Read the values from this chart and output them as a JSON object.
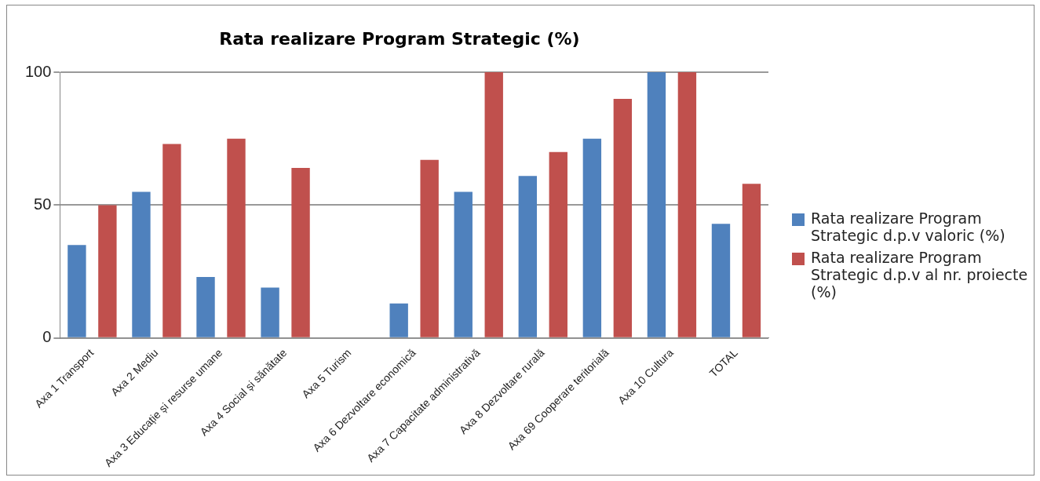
{
  "chart_data": {
    "type": "bar",
    "title": "Rata realizare Program Strategic (%)",
    "categories": [
      "Axa 1 Transport",
      "Axa 2 Mediu",
      "Axa 3 Educație și resurse umane",
      "Axa 4 Social și sănătate",
      "Axa 5 Turism",
      "Axa 6 Dezvoltare economică",
      "Axa 7 Capacitate administrativă",
      "Axa 8 Dezvoltare rurală",
      "Axa 69 Cooperare teritorială",
      "Axa 10 Cultura",
      "TOTAL"
    ],
    "series": [
      {
        "name": "Rata realizare Program Strategic d.p.v valoric (%)",
        "color": "#4f81bd",
        "values": [
          35,
          55,
          23,
          19,
          0,
          13,
          55,
          61,
          75,
          100,
          43
        ]
      },
      {
        "name": "Rata realizare Program Strategic d.p.v al nr. proiecte (%)",
        "color": "#c0504d",
        "values": [
          50,
          73,
          75,
          64,
          0,
          67,
          100,
          70,
          90,
          100,
          58
        ]
      }
    ],
    "ylim": [
      0,
      100
    ],
    "yticks": [
      0,
      50,
      100
    ],
    "grid": "y",
    "legend": "right"
  }
}
